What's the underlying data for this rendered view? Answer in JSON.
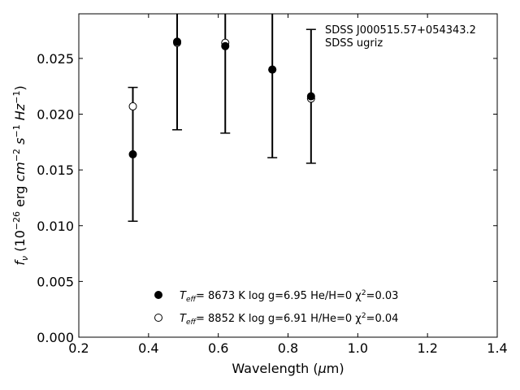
{
  "chart_data": {
    "type": "scatter",
    "annotations": [
      "SDSS J000515.57+054343.2",
      "SDSS ugriz"
    ],
    "xlabel": "Wavelength (μm)",
    "ylabel": "f_ν (10^-26 erg cm^-2 s^-1 Hz^-1)",
    "xlim": [
      0.2,
      1.4
    ],
    "ylim": [
      0.0,
      0.029
    ],
    "xticks": [
      0.2,
      0.4,
      0.6,
      0.8,
      1.0,
      1.2,
      1.4
    ],
    "xtick_labels": [
      "0.2",
      "0.4",
      "0.6",
      "0.8",
      "1.0",
      "1.2",
      "1.4"
    ],
    "yticks": [
      0.0,
      0.005,
      0.01,
      0.015,
      0.02,
      0.025
    ],
    "ytick_labels": [
      "0.000",
      "0.005",
      "0.010",
      "0.015",
      "0.020",
      "0.025"
    ],
    "grid": false,
    "legend_position": "bottom-center",
    "observed": {
      "x": [
        0.355,
        0.482,
        0.62,
        0.755,
        0.866
      ],
      "y": [
        0.0164,
        0.0265,
        0.0261,
        0.024,
        0.0216
      ],
      "yerr": [
        0.006,
        0.0079,
        0.0078,
        0.0079,
        0.006
      ]
    },
    "series": [
      {
        "label_prefix": "T",
        "label_sub": "eff",
        "label_body": "=  8673 K  log g=6.95  He/H=0  χ",
        "label_sup": "2",
        "label_tail": "=0.03",
        "marker": "filled-circle",
        "x": [
          0.355,
          0.482,
          0.62,
          0.755,
          0.866
        ],
        "y": [
          0.0164,
          0.0265,
          0.0261,
          0.024,
          0.0216
        ]
      },
      {
        "label_prefix": "T",
        "label_sub": "eff",
        "label_body": "=  8852 K  log g=6.91  H/He=0  χ",
        "label_sup": "2",
        "label_tail": "=0.04",
        "marker": "open-circle",
        "x": [
          0.355,
          0.482,
          0.62,
          0.755,
          0.866
        ],
        "y": [
          0.0207,
          0.0264,
          0.0264,
          0.024,
          0.0214
        ]
      }
    ]
  }
}
